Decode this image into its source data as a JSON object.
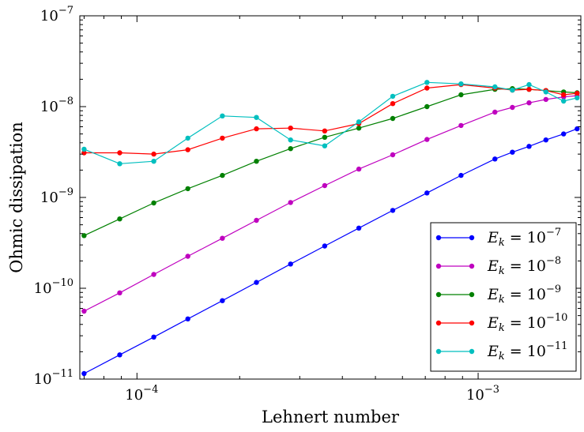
{
  "chart_data": {
    "type": "line",
    "xlabel": "Lehnert number",
    "ylabel": "Ohmic dissipation",
    "xscale": "log",
    "yscale": "log",
    "xlim": [
      6.8e-05,
      0.002
    ],
    "ylim": [
      1e-11,
      1e-07
    ],
    "grid": false,
    "legend_position": "lower-right",
    "x_ticks": [
      {
        "value": 0.0001,
        "base": "10",
        "exp": "−4"
      },
      {
        "value": 0.001,
        "base": "10",
        "exp": "−3"
      }
    ],
    "y_ticks": [
      {
        "value": 1e-11,
        "base": "10",
        "exp": "−11"
      },
      {
        "value": 1e-10,
        "base": "10",
        "exp": "−10"
      },
      {
        "value": 1e-09,
        "base": "10",
        "exp": "−9"
      },
      {
        "value": 1e-08,
        "base": "10",
        "exp": "−8"
      },
      {
        "value": 1e-07,
        "base": "10",
        "exp": "−7"
      }
    ],
    "x": [
      7e-05,
      8.9e-05,
      0.000112,
      0.000141,
      0.000178,
      0.000224,
      0.000282,
      0.000355,
      0.000447,
      0.000562,
      0.000708,
      0.000891,
      0.00112,
      0.00126,
      0.00141,
      0.00158,
      0.00178,
      0.00195
    ],
    "series": [
      {
        "name_main": "E",
        "name_sub": "k",
        "name_eq": " = 10",
        "name_exp": "−7",
        "color": "#0000ff",
        "values": [
          1.15e-11,
          1.85e-11,
          2.9e-11,
          4.6e-11,
          7.3e-11,
          1.16e-10,
          1.85e-10,
          2.92e-10,
          4.6e-10,
          7.2e-10,
          1.12e-09,
          1.75e-09,
          2.65e-09,
          3.15e-09,
          3.65e-09,
          4.3e-09,
          5e-09,
          5.7e-09
        ]
      },
      {
        "name_main": "E",
        "name_sub": "k",
        "name_eq": " = 10",
        "name_exp": "−8",
        "color": "#bf00bf",
        "values": [
          5.6e-11,
          8.9e-11,
          1.42e-10,
          2.25e-10,
          3.55e-10,
          5.6e-10,
          8.8e-10,
          1.35e-09,
          2.05e-09,
          2.95e-09,
          4.35e-09,
          6.2e-09,
          8.7e-09,
          9.8e-09,
          1.1e-08,
          1.2e-08,
          1.28e-08,
          1.32e-08
        ]
      },
      {
        "name_main": "E",
        "name_sub": "k",
        "name_eq": " = 10",
        "name_exp": "−9",
        "color": "#008000",
        "values": [
          3.8e-10,
          5.8e-10,
          8.7e-10,
          1.25e-09,
          1.75e-09,
          2.5e-09,
          3.45e-09,
          4.6e-09,
          5.8e-09,
          7.4e-09,
          1e-08,
          1.35e-08,
          1.55e-08,
          1.58e-08,
          1.55e-08,
          1.5e-08,
          1.45e-08,
          1.42e-08
        ]
      },
      {
        "name_main": "E",
        "name_sub": "k",
        "name_eq": " = 10",
        "name_exp": "−10",
        "color": "#ff0000",
        "values": [
          3.1e-09,
          3.1e-09,
          3e-09,
          3.35e-09,
          4.5e-09,
          5.7e-09,
          5.8e-09,
          5.4e-09,
          6.5e-09,
          1.08e-08,
          1.6e-08,
          1.75e-08,
          1.6e-08,
          1.52e-08,
          1.55e-08,
          1.5e-08,
          1.35e-08,
          1.4e-08
        ]
      },
      {
        "name_main": "E",
        "name_sub": "k",
        "name_eq": " = 10",
        "name_exp": "−11",
        "color": "#00bfbf",
        "values": [
          3.4e-09,
          2.35e-09,
          2.5e-09,
          4.5e-09,
          7.9e-09,
          7.6e-09,
          4.3e-09,
          3.7e-09,
          6.8e-09,
          1.3e-08,
          1.85e-08,
          1.78e-08,
          1.65e-08,
          1.52e-08,
          1.75e-08,
          1.45e-08,
          1.15e-08,
          1.25e-08
        ]
      }
    ]
  }
}
